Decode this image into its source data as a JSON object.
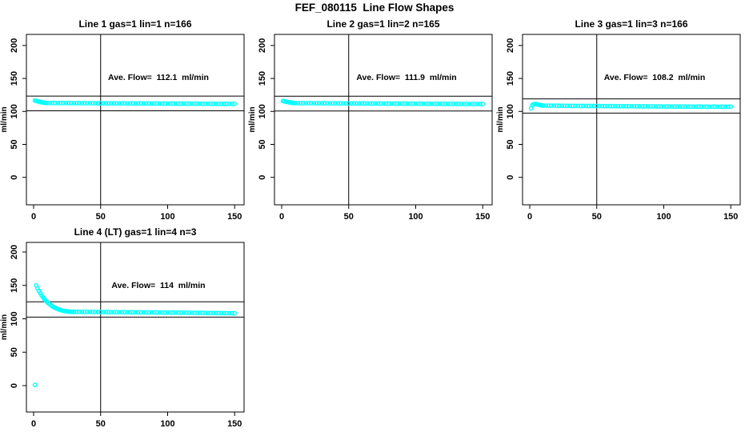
{
  "page_title": "FEF_080115  Line Flow Shapes",
  "colors": {
    "point": "#00ffff",
    "axis": "#000000",
    "background": "#ffffff",
    "text": "#000000"
  },
  "chart_data": [
    {
      "type": "scatter",
      "title": "Line 1 gas=1 lin=1 n=166",
      "annotation": "Ave. Flow=  112.1  ml/min",
      "ave_flow_ml_min": 112.1,
      "n": 166,
      "xlabel": "",
      "ylabel": "ml/min",
      "xticks": [
        0,
        50,
        100,
        150
      ],
      "yticks": [
        0,
        50,
        100,
        150,
        200
      ],
      "xlim": [
        0,
        155
      ],
      "ylim": [
        -40,
        215
      ],
      "vline_x": 50,
      "hlines_y": [
        123.3,
        100.9
      ],
      "marker": "open-circle",
      "points": [
        [
          1,
          116.5
        ],
        [
          2,
          116
        ],
        [
          3,
          115.4
        ],
        [
          4,
          114.8
        ],
        [
          5,
          114.3
        ],
        [
          6,
          113.9
        ],
        [
          7,
          113.5
        ],
        [
          8,
          113.2
        ],
        [
          9,
          113
        ],
        [
          10,
          112.8
        ],
        [
          12,
          112.8
        ],
        [
          14,
          112.8
        ],
        [
          16,
          112.7
        ],
        [
          18,
          112.7
        ],
        [
          20,
          112.7
        ],
        [
          22,
          112.7
        ],
        [
          24,
          112.7
        ],
        [
          26,
          112.6
        ],
        [
          28,
          112.6
        ],
        [
          30,
          112.6
        ],
        [
          32,
          112.6
        ],
        [
          34,
          112.6
        ],
        [
          36,
          112.5
        ],
        [
          38,
          112.5
        ],
        [
          40,
          112.5
        ],
        [
          42,
          112.5
        ],
        [
          44,
          112.5
        ],
        [
          46,
          112.4
        ],
        [
          48,
          112.4
        ],
        [
          50,
          112.4
        ],
        [
          52,
          112.4
        ],
        [
          54,
          112.4
        ],
        [
          56,
          112.3
        ],
        [
          58,
          112.3
        ],
        [
          60,
          112.3
        ],
        [
          62,
          112.3
        ],
        [
          64,
          112.3
        ],
        [
          66,
          112.2
        ],
        [
          68,
          112.2
        ],
        [
          70,
          112.2
        ],
        [
          72,
          112.2
        ],
        [
          74,
          112.2
        ],
        [
          76,
          112.1
        ],
        [
          78,
          112.1
        ],
        [
          80,
          112.1
        ],
        [
          82,
          112.1
        ],
        [
          84,
          112.1
        ],
        [
          86,
          112
        ],
        [
          88,
          112
        ],
        [
          90,
          112
        ],
        [
          92,
          112
        ],
        [
          94,
          112
        ],
        [
          96,
          111.9
        ],
        [
          98,
          111.9
        ],
        [
          100,
          111.9
        ],
        [
          102,
          111.9
        ],
        [
          104,
          111.9
        ],
        [
          106,
          111.8
        ],
        [
          108,
          111.8
        ],
        [
          110,
          111.8
        ],
        [
          112,
          111.8
        ],
        [
          114,
          111.8
        ],
        [
          116,
          111.7
        ],
        [
          118,
          111.7
        ],
        [
          120,
          111.7
        ],
        [
          122,
          111.7
        ],
        [
          124,
          111.7
        ],
        [
          126,
          111.6
        ],
        [
          128,
          111.6
        ],
        [
          130,
          111.6
        ],
        [
          132,
          111.6
        ],
        [
          134,
          111.6
        ],
        [
          136,
          111.5
        ],
        [
          138,
          111.5
        ],
        [
          140,
          111.5
        ],
        [
          142,
          111.5
        ],
        [
          144,
          111.5
        ],
        [
          146,
          111.5
        ],
        [
          148,
          111.5
        ],
        [
          150,
          111.5
        ]
      ]
    },
    {
      "type": "scatter",
      "title": "Line 2 gas=1 lin=2 n=165",
      "annotation": "Ave. Flow=  111.9  ml/min",
      "ave_flow_ml_min": 111.9,
      "n": 165,
      "xlabel": "",
      "ylabel": "ml/min",
      "xticks": [
        0,
        50,
        100,
        150
      ],
      "yticks": [
        0,
        50,
        100,
        150,
        200
      ],
      "xlim": [
        0,
        155
      ],
      "ylim": [
        -40,
        215
      ],
      "vline_x": 50,
      "hlines_y": [
        123.1,
        100.7
      ],
      "marker": "open-circle",
      "points": [
        [
          1,
          115.8
        ],
        [
          2,
          115.3
        ],
        [
          3,
          114.8
        ],
        [
          4,
          114.4
        ],
        [
          5,
          114
        ],
        [
          6,
          113.6
        ],
        [
          7,
          113.3
        ],
        [
          8,
          113
        ],
        [
          9,
          112.8
        ],
        [
          10,
          112.6
        ],
        [
          12,
          112.6
        ],
        [
          14,
          112.6
        ],
        [
          16,
          112.5
        ],
        [
          18,
          112.5
        ],
        [
          20,
          112.5
        ],
        [
          22,
          112.5
        ],
        [
          24,
          112.5
        ],
        [
          26,
          112.4
        ],
        [
          28,
          112.4
        ],
        [
          30,
          112.4
        ],
        [
          32,
          112.4
        ],
        [
          34,
          112.4
        ],
        [
          36,
          112.3
        ],
        [
          38,
          112.3
        ],
        [
          40,
          112.3
        ],
        [
          42,
          112.3
        ],
        [
          44,
          112.3
        ],
        [
          46,
          112.2
        ],
        [
          48,
          112.2
        ],
        [
          50,
          112.2
        ],
        [
          52,
          112.2
        ],
        [
          54,
          112.2
        ],
        [
          56,
          112.1
        ],
        [
          58,
          112.1
        ],
        [
          60,
          112.1
        ],
        [
          62,
          112.1
        ],
        [
          64,
          112.1
        ],
        [
          66,
          112
        ],
        [
          68,
          112
        ],
        [
          70,
          112
        ],
        [
          72,
          112
        ],
        [
          74,
          112
        ],
        [
          76,
          111.9
        ],
        [
          78,
          111.9
        ],
        [
          80,
          111.9
        ],
        [
          82,
          111.9
        ],
        [
          84,
          111.9
        ],
        [
          86,
          111.8
        ],
        [
          88,
          111.8
        ],
        [
          90,
          111.8
        ],
        [
          92,
          111.8
        ],
        [
          94,
          111.8
        ],
        [
          96,
          111.7
        ],
        [
          98,
          111.7
        ],
        [
          100,
          111.7
        ],
        [
          102,
          111.7
        ],
        [
          104,
          111.7
        ],
        [
          106,
          111.6
        ],
        [
          108,
          111.6
        ],
        [
          110,
          111.6
        ],
        [
          112,
          111.6
        ],
        [
          114,
          111.6
        ],
        [
          116,
          111.5
        ],
        [
          118,
          111.5
        ],
        [
          120,
          111.5
        ],
        [
          122,
          111.5
        ],
        [
          124,
          111.5
        ],
        [
          126,
          111.4
        ],
        [
          128,
          111.4
        ],
        [
          130,
          111.4
        ],
        [
          132,
          111.4
        ],
        [
          134,
          111.4
        ],
        [
          136,
          111.3
        ],
        [
          138,
          111.3
        ],
        [
          140,
          111.3
        ],
        [
          142,
          111.3
        ],
        [
          144,
          111.3
        ],
        [
          146,
          111.3
        ],
        [
          148,
          111.3
        ],
        [
          150,
          111.3
        ]
      ]
    },
    {
      "type": "scatter",
      "title": "Line 3 gas=1 lin=3 n=166",
      "annotation": "Ave. Flow=  108.2  ml/min",
      "ave_flow_ml_min": 108.2,
      "n": 166,
      "xlabel": "",
      "ylabel": "ml/min",
      "xticks": [
        0,
        50,
        100,
        150
      ],
      "yticks": [
        0,
        50,
        100,
        150,
        200
      ],
      "xlim": [
        0,
        155
      ],
      "ylim": [
        -40,
        215
      ],
      "vline_x": 50,
      "hlines_y": [
        119.0,
        97.4
      ],
      "marker": "open-circle",
      "points": [
        [
          1,
          104.5
        ],
        [
          2,
          109.5
        ],
        [
          3,
          111
        ],
        [
          4,
          111.3
        ],
        [
          5,
          111
        ],
        [
          6,
          110.5
        ],
        [
          7,
          110
        ],
        [
          8,
          109.6
        ],
        [
          9,
          109.2
        ],
        [
          10,
          108.8
        ],
        [
          12,
          108.8
        ],
        [
          14,
          108.7
        ],
        [
          16,
          108.7
        ],
        [
          18,
          108.7
        ],
        [
          20,
          108.6
        ],
        [
          22,
          108.6
        ],
        [
          24,
          108.6
        ],
        [
          26,
          108.5
        ],
        [
          28,
          108.5
        ],
        [
          30,
          108.5
        ],
        [
          32,
          108.4
        ],
        [
          34,
          108.4
        ],
        [
          36,
          108.4
        ],
        [
          38,
          108.3
        ],
        [
          40,
          108.3
        ],
        [
          42,
          108.3
        ],
        [
          44,
          108.2
        ],
        [
          46,
          108.2
        ],
        [
          48,
          108.2
        ],
        [
          50,
          108.2
        ],
        [
          52,
          108.1
        ],
        [
          54,
          108.1
        ],
        [
          56,
          108.1
        ],
        [
          58,
          108
        ],
        [
          60,
          108
        ],
        [
          62,
          108
        ],
        [
          64,
          108
        ],
        [
          66,
          107.9
        ],
        [
          68,
          107.9
        ],
        [
          70,
          107.9
        ],
        [
          72,
          107.9
        ],
        [
          74,
          107.8
        ],
        [
          76,
          107.8
        ],
        [
          78,
          107.8
        ],
        [
          80,
          107.8
        ],
        [
          82,
          107.7
        ],
        [
          84,
          107.7
        ],
        [
          86,
          107.7
        ],
        [
          88,
          107.7
        ],
        [
          90,
          107.6
        ],
        [
          92,
          107.6
        ],
        [
          94,
          107.6
        ],
        [
          96,
          107.6
        ],
        [
          98,
          107.5
        ],
        [
          100,
          107.5
        ],
        [
          102,
          107.5
        ],
        [
          104,
          107.5
        ],
        [
          106,
          107.5
        ],
        [
          108,
          107.4
        ],
        [
          110,
          107.4
        ],
        [
          112,
          107.4
        ],
        [
          114,
          107.4
        ],
        [
          116,
          107.4
        ],
        [
          118,
          107.3
        ],
        [
          120,
          107.3
        ],
        [
          122,
          107.3
        ],
        [
          124,
          107.3
        ],
        [
          126,
          107.3
        ],
        [
          128,
          107.3
        ],
        [
          130,
          107.2
        ],
        [
          132,
          107.2
        ],
        [
          134,
          107.2
        ],
        [
          136,
          107.2
        ],
        [
          138,
          107.2
        ],
        [
          140,
          107.2
        ],
        [
          142,
          107.2
        ],
        [
          144,
          107.2
        ],
        [
          146,
          107.2
        ],
        [
          148,
          107.2
        ],
        [
          150,
          107.2
        ]
      ]
    },
    {
      "type": "scatter",
      "title": "Line 4 (LT) gas=1 lin=4 n=3",
      "annotation": "Ave. Flow=  114  ml/min",
      "ave_flow_ml_min": 114,
      "n": 3,
      "xlabel": "",
      "ylabel": "ml/min",
      "xticks": [
        0,
        50,
        100,
        150
      ],
      "yticks": [
        0,
        50,
        100,
        150,
        200
      ],
      "xlim": [
        0,
        155
      ],
      "ylim": [
        -40,
        215
      ],
      "vline_x": 50,
      "hlines_y": [
        125.4,
        102.6
      ],
      "marker": "open-circle",
      "points": [
        [
          1,
          1
        ],
        [
          2,
          150
        ],
        [
          3,
          145.6
        ],
        [
          4,
          141.7
        ],
        [
          5,
          138.2
        ],
        [
          6,
          135
        ],
        [
          7,
          132.2
        ],
        [
          8,
          129.6
        ],
        [
          9,
          127.3
        ],
        [
          10,
          125.2
        ],
        [
          11,
          123.4
        ],
        [
          12,
          121.7
        ],
        [
          13,
          120.2
        ],
        [
          14,
          118.8
        ],
        [
          15,
          117.6
        ],
        [
          16,
          116.5
        ],
        [
          17,
          115.5
        ],
        [
          18,
          114.6
        ],
        [
          19,
          113.9
        ],
        [
          20,
          113.2
        ],
        [
          21,
          112.6
        ],
        [
          22,
          112.1
        ],
        [
          23,
          111.7
        ],
        [
          24,
          111.3
        ],
        [
          25,
          111
        ],
        [
          26,
          110.8
        ],
        [
          27,
          110.6
        ],
        [
          28,
          110.5
        ],
        [
          29,
          110.4
        ],
        [
          30,
          110.4
        ],
        [
          32,
          110.4
        ],
        [
          34,
          110.4
        ],
        [
          36,
          110.3
        ],
        [
          38,
          110.3
        ],
        [
          40,
          110.3
        ],
        [
          42,
          110.3
        ],
        [
          44,
          110.2
        ],
        [
          46,
          110.2
        ],
        [
          48,
          110.2
        ],
        [
          50,
          110.1
        ],
        [
          52,
          110.1
        ],
        [
          54,
          110.1
        ],
        [
          56,
          110
        ],
        [
          58,
          110
        ],
        [
          60,
          110
        ],
        [
          62,
          109.9
        ],
        [
          64,
          109.9
        ],
        [
          66,
          109.9
        ],
        [
          68,
          109.8
        ],
        [
          70,
          109.8
        ],
        [
          72,
          109.8
        ],
        [
          74,
          109.7
        ],
        [
          76,
          109.7
        ],
        [
          78,
          109.7
        ],
        [
          80,
          109.6
        ],
        [
          82,
          109.6
        ],
        [
          84,
          109.6
        ],
        [
          86,
          109.5
        ],
        [
          88,
          109.5
        ],
        [
          90,
          109.5
        ],
        [
          92,
          109.4
        ],
        [
          94,
          109.4
        ],
        [
          96,
          109.4
        ],
        [
          98,
          109.3
        ],
        [
          100,
          109.3
        ],
        [
          102,
          109.3
        ],
        [
          104,
          109.2
        ],
        [
          106,
          109.2
        ],
        [
          108,
          109.2
        ],
        [
          110,
          109.1
        ],
        [
          112,
          109.1
        ],
        [
          114,
          109.1
        ],
        [
          116,
          109
        ],
        [
          118,
          109
        ],
        [
          120,
          109
        ],
        [
          122,
          108.9
        ],
        [
          124,
          108.9
        ],
        [
          126,
          108.9
        ],
        [
          128,
          108.8
        ],
        [
          130,
          108.8
        ],
        [
          132,
          108.7
        ],
        [
          134,
          108.7
        ],
        [
          136,
          108.6
        ],
        [
          138,
          108.6
        ],
        [
          140,
          108.5
        ],
        [
          142,
          108.5
        ],
        [
          144,
          108.4
        ],
        [
          146,
          108.4
        ],
        [
          148,
          108.3
        ],
        [
          150,
          108.3
        ]
      ]
    }
  ]
}
